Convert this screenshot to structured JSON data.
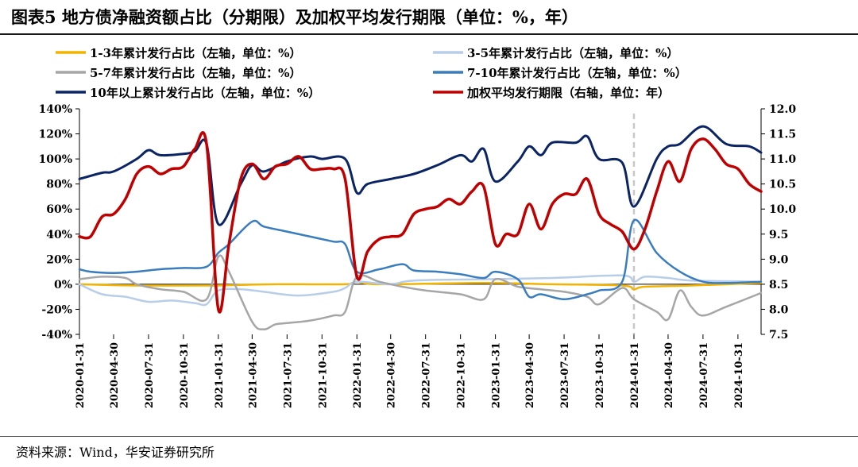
{
  "header": {
    "title": "图表5 地方债净融资额占比（分期限）及加权平均发行期限（单位：%，年）"
  },
  "footer": {
    "source": "资料来源：Wind，华安证券研究所"
  },
  "chart_data": {
    "type": "line",
    "title": "图表5 地方债净融资额占比（分期限）及加权平均发行期限（单位：%，年）",
    "x_range": [
      "2020-01-31",
      "2024-12-31"
    ],
    "x_tick_labels": [
      "2020-01-31",
      "2020-04-30",
      "2020-07-31",
      "2020-10-31",
      "2021-01-31",
      "2021-04-30",
      "2021-07-31",
      "2021-10-31",
      "2022-01-31",
      "2022-04-30",
      "2022-07-31",
      "2022-10-31",
      "2023-01-31",
      "2023-04-30",
      "2023-07-31",
      "2023-10-31",
      "2024-01-31",
      "2024-04-30",
      "2024-07-31",
      "2024-10-31"
    ],
    "y_left": {
      "min": -40,
      "max": 140,
      "step": 20,
      "unit": "%",
      "tick_labels": [
        "-40%",
        "-20%",
        "0%",
        "20%",
        "40%",
        "60%",
        "80%",
        "100%",
        "120%",
        "140%"
      ]
    },
    "y_right": {
      "min": 7.5,
      "max": 12.0,
      "step": 0.5,
      "tick_labels": [
        "7.5",
        "8.0",
        "8.5",
        "9.0",
        "9.5",
        "10.0",
        "10.5",
        "11.0",
        "11.5",
        "12.0"
      ]
    },
    "vertical_marker": {
      "x": "2024-01-31",
      "style": "dashed",
      "color": "#c8c8c8"
    },
    "legend_placement": "top",
    "series": [
      {
        "name": "1-3年累计发行占比（左轴，单位：%）",
        "axis": "left",
        "color": "#f2b400",
        "points": [
          [
            "2020-01-31",
            0
          ],
          [
            "2020-06-30",
            -1
          ],
          [
            "2020-12-31",
            -1
          ],
          [
            "2021-01-31",
            -1
          ],
          [
            "2021-06-30",
            0
          ],
          [
            "2021-12-31",
            0
          ],
          [
            "2022-01-31",
            2
          ],
          [
            "2022-03-31",
            0
          ],
          [
            "2022-12-31",
            1
          ],
          [
            "2023-06-30",
            0
          ],
          [
            "2023-12-31",
            -1
          ],
          [
            "2024-01-31",
            -4
          ],
          [
            "2024-02-28",
            -2
          ],
          [
            "2024-06-30",
            -1
          ],
          [
            "2024-12-31",
            1
          ]
        ]
      },
      {
        "name": "3-5年累计发行占比（左轴，单位：%）",
        "axis": "left",
        "color": "#b7cde8",
        "points": [
          [
            "2020-01-31",
            0
          ],
          [
            "2020-03-31",
            -8
          ],
          [
            "2020-05-31",
            -10
          ],
          [
            "2020-07-31",
            -14
          ],
          [
            "2020-09-30",
            -13
          ],
          [
            "2020-11-30",
            -15
          ],
          [
            "2020-12-31",
            -16
          ],
          [
            "2021-01-31",
            -5
          ],
          [
            "2021-03-31",
            -4
          ],
          [
            "2021-05-31",
            -6
          ],
          [
            "2021-08-31",
            -9
          ],
          [
            "2021-11-30",
            -6
          ],
          [
            "2021-12-31",
            -3
          ],
          [
            "2022-01-31",
            2
          ],
          [
            "2022-04-30",
            0
          ],
          [
            "2022-06-30",
            3
          ],
          [
            "2022-12-31",
            4
          ],
          [
            "2023-06-30",
            5
          ],
          [
            "2023-12-31",
            7
          ],
          [
            "2024-01-31",
            2
          ],
          [
            "2024-02-29",
            6
          ],
          [
            "2024-04-30",
            5
          ],
          [
            "2024-06-30",
            3
          ],
          [
            "2024-12-31",
            2
          ]
        ]
      },
      {
        "name": "5-7年累计发行占比（左轴，单位：%）",
        "axis": "left",
        "color": "#a6a6a6",
        "points": [
          [
            "2020-01-31",
            4
          ],
          [
            "2020-03-31",
            6
          ],
          [
            "2020-05-31",
            5
          ],
          [
            "2020-06-30",
            0
          ],
          [
            "2020-08-31",
            -4
          ],
          [
            "2020-10-31",
            -6
          ],
          [
            "2020-12-31",
            -12
          ],
          [
            "2021-01-31",
            22
          ],
          [
            "2021-02-28",
            10
          ],
          [
            "2021-04-30",
            -30
          ],
          [
            "2021-05-31",
            -36
          ],
          [
            "2021-06-30",
            -32
          ],
          [
            "2021-07-31",
            -31
          ],
          [
            "2021-09-30",
            -29
          ],
          [
            "2021-11-30",
            -25
          ],
          [
            "2021-12-31",
            -22
          ],
          [
            "2022-01-31",
            6
          ],
          [
            "2022-03-31",
            2
          ],
          [
            "2022-05-31",
            -2
          ],
          [
            "2022-07-31",
            -5
          ],
          [
            "2022-10-31",
            -8
          ],
          [
            "2022-12-31",
            -12
          ],
          [
            "2023-01-31",
            4
          ],
          [
            "2023-03-31",
            -2
          ],
          [
            "2023-05-31",
            -4
          ],
          [
            "2023-07-31",
            -6
          ],
          [
            "2023-09-30",
            -10
          ],
          [
            "2023-10-31",
            -16
          ],
          [
            "2023-12-31",
            -3
          ],
          [
            "2024-01-31",
            -12
          ],
          [
            "2024-03-31",
            -22
          ],
          [
            "2024-04-30",
            -28
          ],
          [
            "2024-05-31",
            -5
          ],
          [
            "2024-06-30",
            -18
          ],
          [
            "2024-07-31",
            -25
          ],
          [
            "2024-09-30",
            -18
          ],
          [
            "2024-12-31",
            -7
          ]
        ]
      },
      {
        "name": "7-10年累计发行占比（左轴，单位：%）",
        "axis": "left",
        "color": "#3a7dbf",
        "points": [
          [
            "2020-01-31",
            12
          ],
          [
            "2020-02-29",
            10
          ],
          [
            "2020-04-30",
            9
          ],
          [
            "2020-06-30",
            10
          ],
          [
            "2020-08-31",
            12
          ],
          [
            "2020-10-31",
            13
          ],
          [
            "2020-12-31",
            14
          ],
          [
            "2021-01-31",
            25
          ],
          [
            "2021-02-28",
            32
          ],
          [
            "2021-04-30",
            50
          ],
          [
            "2021-05-31",
            46
          ],
          [
            "2021-07-31",
            42
          ],
          [
            "2021-09-30",
            38
          ],
          [
            "2021-11-30",
            34
          ],
          [
            "2021-12-31",
            32
          ],
          [
            "2022-01-31",
            10
          ],
          [
            "2022-03-31",
            12
          ],
          [
            "2022-05-31",
            16
          ],
          [
            "2022-06-30",
            11
          ],
          [
            "2022-08-31",
            10
          ],
          [
            "2022-10-31",
            8
          ],
          [
            "2022-12-31",
            5
          ],
          [
            "2023-01-31",
            10
          ],
          [
            "2023-03-31",
            4
          ],
          [
            "2023-04-30",
            -10
          ],
          [
            "2023-05-31",
            -8
          ],
          [
            "2023-07-31",
            -12
          ],
          [
            "2023-09-30",
            -8
          ],
          [
            "2023-10-31",
            -5
          ],
          [
            "2023-12-31",
            2
          ],
          [
            "2024-01-31",
            51
          ],
          [
            "2024-03-31",
            25
          ],
          [
            "2024-05-31",
            10
          ],
          [
            "2024-07-31",
            2
          ],
          [
            "2024-09-30",
            1
          ],
          [
            "2024-12-31",
            2
          ]
        ]
      },
      {
        "name": "10年以上累计发行占比（左轴，单位：%）",
        "axis": "left",
        "color": "#0b2464",
        "points": [
          [
            "2020-01-31",
            84
          ],
          [
            "2020-03-31",
            89
          ],
          [
            "2020-04-30",
            90
          ],
          [
            "2020-06-30",
            100
          ],
          [
            "2020-07-31",
            107
          ],
          [
            "2020-08-31",
            103
          ],
          [
            "2020-10-31",
            104
          ],
          [
            "2020-11-30",
            106
          ],
          [
            "2020-12-31",
            112
          ],
          [
            "2021-01-31",
            48
          ],
          [
            "2021-03-31",
            80
          ],
          [
            "2021-04-30",
            95
          ],
          [
            "2021-05-31",
            90
          ],
          [
            "2021-07-31",
            98
          ],
          [
            "2021-09-30",
            102
          ],
          [
            "2021-10-31",
            100
          ],
          [
            "2021-12-31",
            100
          ],
          [
            "2022-01-31",
            73
          ],
          [
            "2022-02-28",
            80
          ],
          [
            "2022-04-30",
            84
          ],
          [
            "2022-06-30",
            88
          ],
          [
            "2022-08-31",
            95
          ],
          [
            "2022-10-31",
            103
          ],
          [
            "2022-11-30",
            98
          ],
          [
            "2022-12-31",
            108
          ],
          [
            "2023-01-31",
            82
          ],
          [
            "2023-03-31",
            98
          ],
          [
            "2023-04-30",
            110
          ],
          [
            "2023-05-31",
            103
          ],
          [
            "2023-06-30",
            113
          ],
          [
            "2023-08-31",
            113
          ],
          [
            "2023-09-30",
            118
          ],
          [
            "2023-10-31",
            100
          ],
          [
            "2023-12-31",
            97
          ],
          [
            "2024-01-31",
            62
          ],
          [
            "2024-03-31",
            100
          ],
          [
            "2024-04-30",
            110
          ],
          [
            "2024-05-31",
            112
          ],
          [
            "2024-07-31",
            126
          ],
          [
            "2024-09-30",
            112
          ],
          [
            "2024-11-30",
            110
          ],
          [
            "2024-12-31",
            105
          ]
        ]
      },
      {
        "name": "加权平均发行期限（右轴，单位：年）",
        "axis": "right",
        "color": "#c00000",
        "points": [
          [
            "2020-01-31",
            9.45
          ],
          [
            "2020-02-29",
            9.45
          ],
          [
            "2020-03-31",
            9.85
          ],
          [
            "2020-04-30",
            9.9
          ],
          [
            "2020-05-31",
            10.2
          ],
          [
            "2020-06-30",
            10.7
          ],
          [
            "2020-07-31",
            10.85
          ],
          [
            "2020-08-31",
            10.7
          ],
          [
            "2020-09-30",
            10.8
          ],
          [
            "2020-10-31",
            10.85
          ],
          [
            "2020-11-30",
            11.2
          ],
          [
            "2020-12-31",
            11.3
          ],
          [
            "2021-01-31",
            8.0
          ],
          [
            "2021-02-28",
            9.3
          ],
          [
            "2021-03-31",
            10.6
          ],
          [
            "2021-04-30",
            10.9
          ],
          [
            "2021-05-31",
            10.6
          ],
          [
            "2021-06-30",
            10.85
          ],
          [
            "2021-07-31",
            10.9
          ],
          [
            "2021-08-31",
            11.05
          ],
          [
            "2021-09-30",
            10.8
          ],
          [
            "2021-10-31",
            10.8
          ],
          [
            "2021-11-30",
            10.8
          ],
          [
            "2021-12-31",
            10.6
          ],
          [
            "2022-01-31",
            8.65
          ],
          [
            "2022-02-28",
            9.15
          ],
          [
            "2022-03-31",
            9.4
          ],
          [
            "2022-04-30",
            9.45
          ],
          [
            "2022-05-31",
            9.5
          ],
          [
            "2022-06-30",
            9.9
          ],
          [
            "2022-07-31",
            10.0
          ],
          [
            "2022-08-31",
            10.05
          ],
          [
            "2022-09-30",
            10.2
          ],
          [
            "2022-10-31",
            10.1
          ],
          [
            "2022-11-30",
            10.35
          ],
          [
            "2022-12-31",
            10.45
          ],
          [
            "2023-01-31",
            9.3
          ],
          [
            "2023-02-28",
            9.5
          ],
          [
            "2023-03-31",
            9.5
          ],
          [
            "2023-04-30",
            10.1
          ],
          [
            "2023-05-31",
            9.6
          ],
          [
            "2023-06-30",
            10.1
          ],
          [
            "2023-07-31",
            10.3
          ],
          [
            "2023-08-31",
            10.3
          ],
          [
            "2023-09-30",
            10.6
          ],
          [
            "2023-10-31",
            9.9
          ],
          [
            "2023-11-30",
            9.7
          ],
          [
            "2023-12-31",
            9.55
          ],
          [
            "2024-01-31",
            9.2
          ],
          [
            "2024-02-29",
            9.6
          ],
          [
            "2024-03-31",
            10.35
          ],
          [
            "2024-04-30",
            10.95
          ],
          [
            "2024-05-31",
            10.55
          ],
          [
            "2024-06-30",
            11.2
          ],
          [
            "2024-07-31",
            11.4
          ],
          [
            "2024-08-31",
            11.2
          ],
          [
            "2024-09-30",
            10.9
          ],
          [
            "2024-10-31",
            10.8
          ],
          [
            "2024-11-30",
            10.5
          ],
          [
            "2024-12-31",
            10.35
          ]
        ]
      }
    ]
  }
}
